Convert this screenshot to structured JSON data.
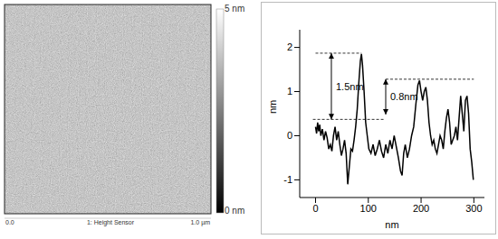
{
  "afm_image": {
    "color_bar": {
      "top_label": "5 nm",
      "bottom_label": "0 nm"
    },
    "x_axis": {
      "start_label": "0.0",
      "end_label": "1.0 µm"
    },
    "channel": "1: Height Sensor"
  },
  "chart_data": {
    "type": "line",
    "x_label": "nm",
    "y_label": "nm",
    "x": [
      0,
      2,
      4,
      6,
      8,
      10,
      13,
      16,
      19,
      22,
      25,
      28,
      31,
      34,
      37,
      40,
      43,
      46,
      49,
      52,
      55,
      58,
      61,
      64,
      67,
      70,
      73,
      76,
      79,
      82,
      85,
      87,
      89,
      92,
      95,
      98,
      101,
      105,
      109,
      113,
      117,
      121,
      125,
      129,
      133,
      137,
      141,
      145,
      149,
      153,
      157,
      161,
      164,
      167,
      170,
      174,
      178,
      182,
      186,
      190,
      194,
      197,
      200,
      203,
      206,
      209,
      212,
      215,
      218,
      221,
      224,
      227,
      230,
      233,
      236,
      239,
      242,
      245,
      248,
      251,
      254,
      257,
      260,
      263,
      266,
      269,
      272,
      275,
      278,
      281,
      284,
      287,
      290,
      293,
      296,
      299
    ],
    "values": [
      0.2,
      0.05,
      0.3,
      0.1,
      0.25,
      0.0,
      0.15,
      -0.1,
      0.1,
      -0.05,
      -0.3,
      -0.2,
      -0.35,
      0.0,
      0.2,
      -0.1,
      0.1,
      -0.2,
      -0.45,
      -0.3,
      -0.1,
      -0.4,
      -1.1,
      -0.7,
      -0.3,
      -0.35,
      -0.1,
      0.2,
      0.6,
      1.2,
      1.7,
      1.85,
      1.6,
      1.0,
      0.3,
      0.0,
      -0.3,
      -0.4,
      -0.2,
      -0.45,
      -0.3,
      -0.1,
      -0.35,
      -0.5,
      -0.2,
      -0.4,
      -0.1,
      -0.3,
      0.0,
      -0.25,
      -0.5,
      -0.8,
      -0.9,
      -0.4,
      -0.2,
      -0.5,
      -0.3,
      0.0,
      0.2,
      0.7,
      1.15,
      1.25,
      1.0,
      0.8,
      1.0,
      1.1,
      0.8,
      0.3,
      0.0,
      -0.2,
      -0.1,
      -0.3,
      -0.4,
      -0.2,
      0.0,
      -0.1,
      -0.3,
      0.1,
      0.4,
      0.6,
      0.3,
      -0.2,
      -0.1,
      0.0,
      0.2,
      -0.1,
      0.4,
      0.9,
      0.5,
      0.1,
      0.8,
      0.9,
      0.5,
      -0.3,
      -0.6,
      -1.0
    ],
    "color": "#000000",
    "xlim": [
      -30,
      320
    ],
    "xticks": [
      0,
      100,
      200,
      300
    ],
    "ylim": [
      -1.4,
      2.4
    ],
    "yticks": [
      -1,
      0,
      1,
      2
    ],
    "grid": false,
    "annotations": [
      {
        "text": "1.5nm",
        "x": 30,
        "y_from": 0.37,
        "y_to": 1.87,
        "lines": [
          {
            "y": 1.87,
            "x_from": 0,
            "x_to": 87
          },
          {
            "y": 0.37,
            "x_from": -5,
            "x_to": 130
          }
        ]
      },
      {
        "text": "0.8nm",
        "x": 133,
        "y_from": 0.48,
        "y_to": 1.28,
        "lines": [
          {
            "y": 1.28,
            "x_from": 133,
            "x_to": 300
          }
        ]
      }
    ]
  }
}
